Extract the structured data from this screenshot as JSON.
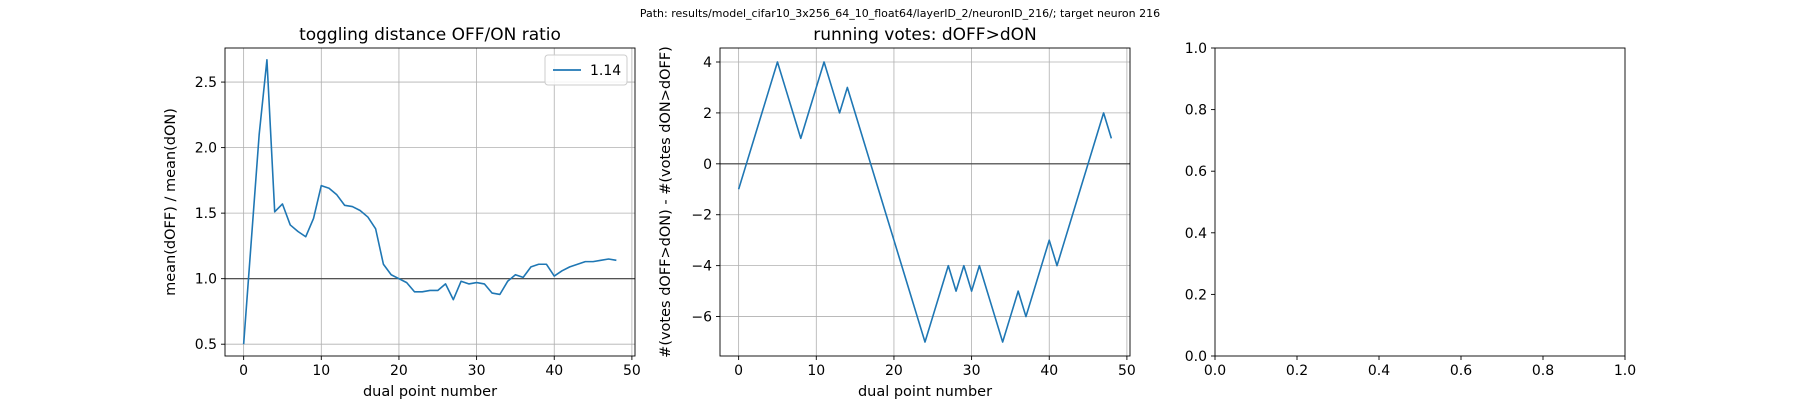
{
  "suptitle": "Path: results/model_cifar10_3x256_64_10_float64/layerID_2/neuronID_216/; target neuron 216",
  "chart_data": [
    {
      "type": "line",
      "title": "toggling distance OFF/ON ratio",
      "xlabel": "dual point number",
      "ylabel": "mean(dOFF) / mean(dON)",
      "xlim": [
        -2.4,
        50.4
      ],
      "ylim": [
        0.41,
        2.76
      ],
      "xticks": [
        0,
        10,
        20,
        30,
        40,
        50
      ],
      "yticks": [
        0.5,
        1.0,
        1.5,
        2.0,
        2.5
      ],
      "xtick_labels": [
        "0",
        "10",
        "20",
        "30",
        "40",
        "50"
      ],
      "ytick_labels": [
        "0.5",
        "1.0",
        "1.5",
        "2.0",
        "2.5"
      ],
      "grid": true,
      "hline": 1.0,
      "legend": {
        "placement": "top-right",
        "entries": [
          "1.14"
        ]
      },
      "series": [
        {
          "name": "1.14",
          "color": "#1f77b4",
          "x": [
            0,
            1,
            2,
            3,
            4,
            5,
            6,
            7,
            8,
            9,
            10,
            11,
            12,
            13,
            14,
            15,
            16,
            17,
            18,
            19,
            20,
            21,
            22,
            23,
            24,
            25,
            26,
            27,
            28,
            29,
            30,
            31,
            32,
            33,
            34,
            35,
            36,
            37,
            38,
            39,
            40,
            41,
            42,
            43,
            44,
            45,
            46,
            47,
            48
          ],
          "y": [
            0.5,
            1.3,
            2.1,
            2.67,
            1.51,
            1.57,
            1.41,
            1.36,
            1.32,
            1.46,
            1.71,
            1.69,
            1.64,
            1.56,
            1.55,
            1.52,
            1.47,
            1.38,
            1.11,
            1.03,
            1.0,
            0.97,
            0.9,
            0.9,
            0.91,
            0.91,
            0.96,
            0.84,
            0.98,
            0.96,
            0.97,
            0.96,
            0.89,
            0.88,
            0.98,
            1.03,
            1.01,
            1.09,
            1.11,
            1.11,
            1.02,
            1.06,
            1.09,
            1.11,
            1.13,
            1.13,
            1.14,
            1.15,
            1.14
          ]
        }
      ]
    },
    {
      "type": "line",
      "title": "running votes: dOFF>dON",
      "xlabel": "dual point number",
      "ylabel": "#(votes dOFF>dON) - #(votes dON>dOFF)",
      "xlim": [
        -2.4,
        50.4
      ],
      "ylim": [
        -7.55,
        4.55
      ],
      "xticks": [
        0,
        10,
        20,
        30,
        40,
        50
      ],
      "yticks": [
        -6,
        -4,
        -2,
        0,
        2,
        4
      ],
      "xtick_labels": [
        "0",
        "10",
        "20",
        "30",
        "40",
        "50"
      ],
      "ytick_labels": [
        "−6",
        "−4",
        "−2",
        "0",
        "2",
        "4"
      ],
      "grid": true,
      "hline": 0,
      "series": [
        {
          "color": "#1f77b4",
          "x": [
            0,
            1,
            2,
            3,
            4,
            5,
            6,
            7,
            8,
            9,
            10,
            11,
            12,
            13,
            14,
            15,
            16,
            17,
            18,
            19,
            20,
            21,
            22,
            23,
            24,
            25,
            26,
            27,
            28,
            29,
            30,
            31,
            32,
            33,
            34,
            35,
            36,
            37,
            38,
            39,
            40,
            41,
            42,
            43,
            44,
            45,
            46,
            47,
            48
          ],
          "y": [
            -1,
            0,
            1,
            2,
            3,
            4,
            3,
            2,
            1,
            2,
            3,
            4,
            3,
            2,
            3,
            2,
            1,
            0,
            -1,
            -2,
            -3,
            -4,
            -5,
            -6,
            -7,
            -6,
            -5,
            -4,
            -5,
            -4,
            -5,
            -4,
            -5,
            -6,
            -7,
            -6,
            -5,
            -6,
            -5,
            -4,
            -3,
            -4,
            -3,
            -2,
            -1,
            0,
            1,
            2,
            1
          ]
        }
      ]
    },
    {
      "type": "line",
      "title": "",
      "xlim": [
        0,
        1
      ],
      "ylim": [
        0,
        1
      ],
      "xticks": [
        0,
        0.2,
        0.4,
        0.6,
        0.8,
        1.0
      ],
      "yticks": [
        0,
        0.2,
        0.4,
        0.6,
        0.8,
        1.0
      ],
      "xtick_labels": [
        "0.0",
        "0.2",
        "0.4",
        "0.6",
        "0.8",
        "1.0"
      ],
      "ytick_labels": [
        "0.0",
        "0.2",
        "0.4",
        "0.6",
        "0.8",
        "1.0"
      ],
      "grid": false,
      "series": []
    }
  ]
}
